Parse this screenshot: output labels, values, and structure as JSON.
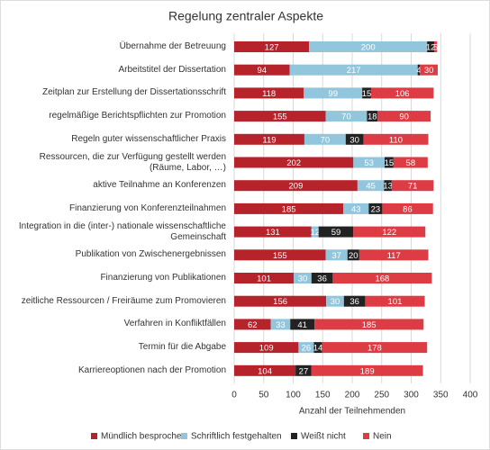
{
  "chart_data": {
    "type": "stacked_barh",
    "title": "Regelung zentraler Aspekte",
    "x_label": "Anzahl der Teilnehmenden",
    "categories": [
      "Übernahme der Betreuung",
      "Arbeitstitel der Dissertation",
      "Zeitplan zur Erstellung der Dissertationsschrift",
      "regelmäßige Berichtspflichten zur Promotion",
      "Regeln guter wissenschaftlicher Praxis",
      "Ressourcen, die zur Verfügung gestellt werden (Räume, Labor, …)",
      "aktive Teilnahme an Konferenzen",
      "Finanzierung von Konferenzteilnahmen",
      "Integration in die (inter-) nationale wissenschaftliche Gemeinschaft",
      "Publikation von Zwischenergebnissen",
      "Finanzierung von Publikationen",
      "zeitliche Ressourcen / Freiräume zum Promovieren",
      "Verfahren in Konfliktfällen",
      "Termin für die Abgabe",
      "Karriereoptionen nach der Promotion"
    ],
    "series": [
      {
        "name": "Mündlich besprochen",
        "color": "#b7232b",
        "values": [
          127,
          94,
          118,
          155,
          119,
          202,
          209,
          185,
          131,
          155,
          101,
          156,
          62,
          109,
          104
        ]
      },
      {
        "name": "Schriftlich festgehalten",
        "color": "#92c6dc",
        "values": [
          200,
          217,
          99,
          70,
          70,
          53,
          45,
          43,
          12,
          37,
          30,
          30,
          33,
          26,
          0
        ]
      },
      {
        "name": "Weißt nicht",
        "color": "#222222",
        "values": [
          12,
          4,
          15,
          18,
          30,
          15,
          13,
          23,
          59,
          20,
          36,
          36,
          41,
          14,
          27
        ]
      },
      {
        "name": "Nein",
        "color": "#dd3c44",
        "values": [
          5,
          30,
          106,
          90,
          110,
          58,
          71,
          86,
          122,
          117,
          168,
          101,
          185,
          178,
          189
        ]
      }
    ],
    "xlim": [
      0,
      400
    ],
    "xticks": [
      0,
      50,
      100,
      150,
      200,
      250,
      300,
      350,
      400
    ],
    "grid": true,
    "legend": "bottom"
  }
}
